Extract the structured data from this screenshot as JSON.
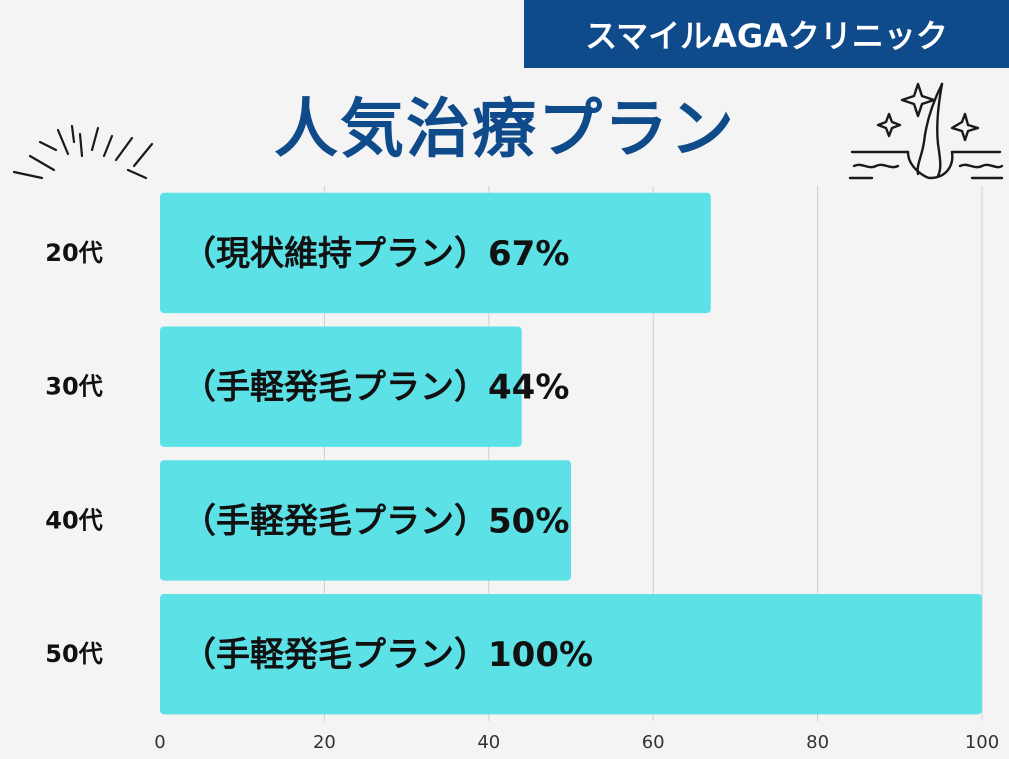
{
  "brand": {
    "name": "スマイルAGAクリニック",
    "color": "#0f4a8a"
  },
  "title": {
    "text": "人気治療プラン",
    "color": "#0f4a8a"
  },
  "chart_data": {
    "type": "bar",
    "orientation": "horizontal",
    "title": "人気治療プラン",
    "categories": [
      "20代",
      "30代",
      "40代",
      "50代"
    ],
    "values": [
      67,
      44,
      50,
      100
    ],
    "bar_labels": [
      "（現状維持プラン）67%",
      "（手軽発毛プラン）44%",
      "（手軽発毛プラン）50%",
      "（手軽発毛プラン）100%"
    ],
    "xlim": [
      0,
      100
    ],
    "xticks": [
      0,
      20,
      40,
      60,
      80,
      100
    ],
    "xlabel": "",
    "ylabel": "",
    "grid": true,
    "bar_color": "#5ce1e6",
    "grid_color": "#cfcfcf"
  },
  "icons": {
    "left_decoration": "sparkle-burst-icon",
    "right_decoration": "hair-follicle-sparkle-icon"
  }
}
